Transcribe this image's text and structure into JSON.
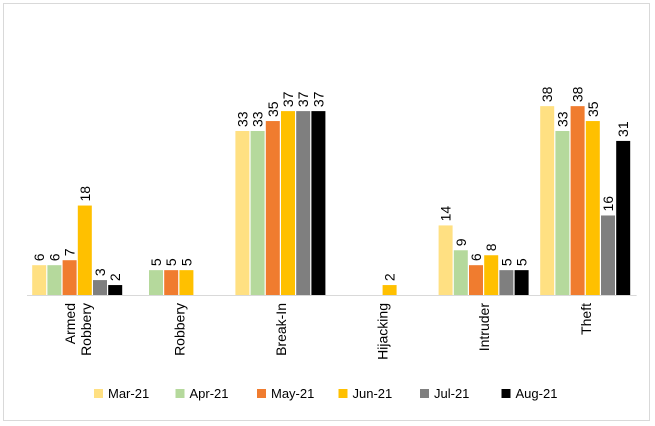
{
  "chart_data": {
    "type": "bar",
    "categories": [
      "Armed Robbery",
      "Robbery",
      "Break-In",
      "Hijacking",
      "Intruder",
      "Theft"
    ],
    "category_lines": [
      [
        "Armed",
        "Robbery"
      ],
      [
        "Robbery"
      ],
      [
        "Break-In"
      ],
      [
        "Hijacking"
      ],
      [
        "Intruder"
      ],
      [
        "Theft"
      ]
    ],
    "series": [
      {
        "name": "Mar-21",
        "color": "#ffe082",
        "values": [
          6,
          null,
          33,
          null,
          14,
          38
        ]
      },
      {
        "name": "Apr-21",
        "color": "#b5d99c",
        "values": [
          6,
          5,
          33,
          null,
          9,
          33
        ]
      },
      {
        "name": "May-21",
        "color": "#f07c2f",
        "values": [
          7,
          5,
          35,
          null,
          6,
          38
        ]
      },
      {
        "name": "Jun-21",
        "color": "#ffc000",
        "values": [
          18,
          5,
          37,
          2,
          8,
          35
        ]
      },
      {
        "name": "Jul-21",
        "color": "#7f7f7f",
        "values": [
          3,
          null,
          37,
          null,
          5,
          16
        ]
      },
      {
        "name": "Aug-21",
        "color": "#000000",
        "values": [
          2,
          null,
          37,
          null,
          5,
          31
        ]
      }
    ],
    "data_labels": true,
    "grid": false,
    "legend": "bottom",
    "ylim": [
      0,
      40
    ]
  }
}
